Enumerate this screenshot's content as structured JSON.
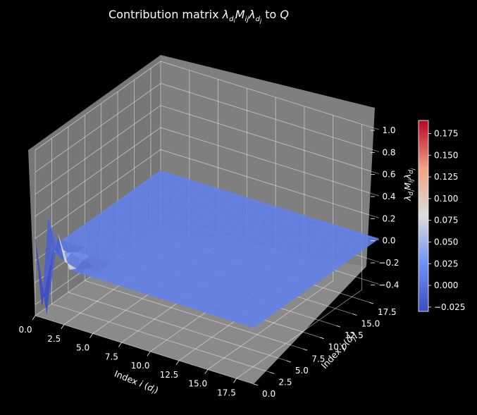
{
  "chart_data": {
    "type": "surface",
    "title": "Contribution matrix λ_{d_i}M_{ij}λ_{d_j} to Q",
    "xlabel": "Index i (d_i)",
    "ylabel": "Index j (d_j)",
    "zlabel": "λ_{d_i}M_{ij}λ_{d_j}",
    "x_ticks": [
      "0.0",
      "2.5",
      "5.0",
      "7.5",
      "10.0",
      "12.5",
      "15.0",
      "17.5"
    ],
    "y_ticks": [
      "0.0",
      "2.5",
      "5.0",
      "7.5",
      "10.0",
      "12.5",
      "15.0",
      "17.5"
    ],
    "z_ticks": [
      "−0.4",
      "−0.2",
      "0.0",
      "0.2",
      "0.4",
      "0.6",
      "0.8",
      "1.0"
    ],
    "xlim": [
      0,
      19
    ],
    "ylim": [
      0,
      19
    ],
    "zlim": [
      -0.5,
      1.0
    ],
    "grid_size": 20,
    "baseline_value": 0.012,
    "notable_points": [
      {
        "i": 0,
        "j": 0,
        "z": 0.19
      },
      {
        "i": 1,
        "j": 0,
        "z": -0.45
      },
      {
        "i": 0,
        "j": 1,
        "z": -0.45
      },
      {
        "i": 2,
        "j": 0,
        "z": 0.3
      },
      {
        "i": 0,
        "j": 2,
        "z": 0.3
      },
      {
        "i": 1,
        "j": 1,
        "z": 0.08
      },
      {
        "i": 3,
        "j": 1,
        "z": -0.02
      },
      {
        "i": 1,
        "j": 3,
        "z": -0.02
      },
      {
        "i": 2,
        "j": 2,
        "z": 0.05
      },
      {
        "i": 4,
        "j": 2,
        "z": -0.01
      }
    ],
    "colormap": "coolwarm",
    "colorbar": {
      "min": -0.03,
      "max": 0.19,
      "ticks": [
        "−0.025",
        "0.000",
        "0.025",
        "0.050",
        "0.075",
        "0.100",
        "0.125",
        "0.150",
        "0.175"
      ]
    },
    "grid": true,
    "pane_color": "#808080",
    "background": "#000000"
  }
}
